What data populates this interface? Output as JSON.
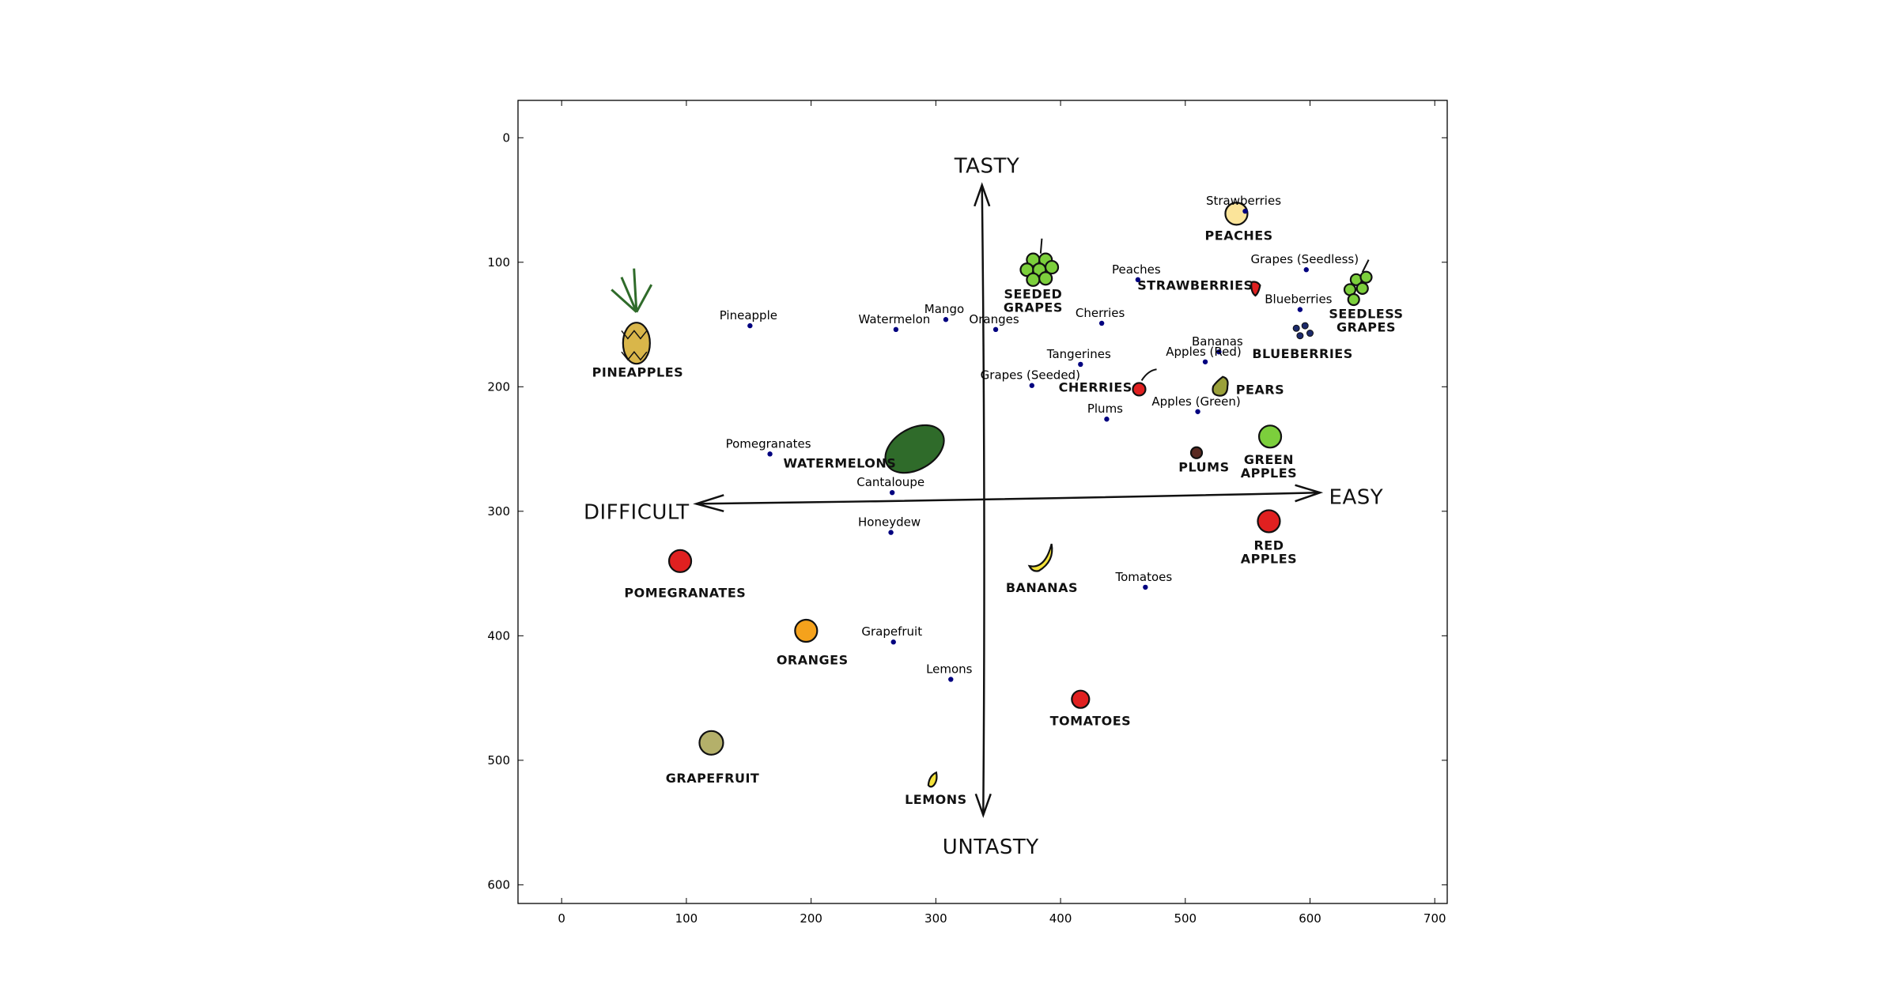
{
  "chart_data": {
    "type": "scatter",
    "title": "",
    "xlabel": "",
    "ylabel": "",
    "xlim": [
      -35,
      710
    ],
    "ylim": [
      615,
      -30
    ],
    "y_inverted": true,
    "grid": false,
    "xticks": [
      0,
      100,
      200,
      300,
      400,
      500,
      600,
      700
    ],
    "yticks": [
      0,
      100,
      200,
      300,
      400,
      500,
      600
    ],
    "points": [
      {
        "label": "Strawberries",
        "x": 548,
        "y": 59
      },
      {
        "label": "Peaches",
        "x": 462,
        "y": 114
      },
      {
        "label": "Grapes (Seedless)",
        "x": 597,
        "y": 106
      },
      {
        "label": "Blueberries",
        "x": 592,
        "y": 138
      },
      {
        "label": "Pineapple",
        "x": 151,
        "y": 151
      },
      {
        "label": "Mango",
        "x": 308,
        "y": 146
      },
      {
        "label": "Watermelon",
        "x": 268,
        "y": 154
      },
      {
        "label": "Oranges",
        "x": 348,
        "y": 154
      },
      {
        "label": "Cherries",
        "x": 433,
        "y": 149
      },
      {
        "label": "Bananas",
        "x": 527,
        "y": 172
      },
      {
        "label": "Apples (Red)",
        "x": 516,
        "y": 180
      },
      {
        "label": "Tangerines",
        "x": 416,
        "y": 182
      },
      {
        "label": "Grapes (Seeded)",
        "x": 377,
        "y": 199
      },
      {
        "label": "Apples (Green)",
        "x": 510,
        "y": 220
      },
      {
        "label": "Plums",
        "x": 437,
        "y": 226
      },
      {
        "label": "Pomegranates",
        "x": 167,
        "y": 254
      },
      {
        "label": "Cantaloupe",
        "x": 265,
        "y": 285
      },
      {
        "label": "Honeydew",
        "x": 264,
        "y": 317
      },
      {
        "label": "Tomatoes",
        "x": 468,
        "y": 361
      },
      {
        "label": "Grapefruit",
        "x": 266,
        "y": 405
      },
      {
        "label": "Lemons",
        "x": 312,
        "y": 435
      }
    ],
    "point_color": "#00007f",
    "background_image": {
      "axis_labels": {
        "top": "TASTY",
        "bottom": "UNTASTY",
        "left": "DIFFICULT",
        "right": "EASY"
      },
      "drawn_fruits": [
        {
          "name": "pineapple",
          "label": "PINEAPPLES"
        },
        {
          "name": "watermelon",
          "label": "WATERMELONS"
        },
        {
          "name": "seeded-grapes",
          "label": "SEEDED GRAPES"
        },
        {
          "name": "peaches",
          "label": "PEACHES"
        },
        {
          "name": "strawberries",
          "label": "STRAWBERRIES"
        },
        {
          "name": "seedless-grapes",
          "label": "SEEDLESS GRAPES"
        },
        {
          "name": "blueberries",
          "label": "BLUEBERRIES"
        },
        {
          "name": "cherries",
          "label": "CHERRIES"
        },
        {
          "name": "pears",
          "label": "PEARS"
        },
        {
          "name": "plums",
          "label": "PLUMS"
        },
        {
          "name": "green-apples",
          "label": "GREEN APPLES"
        },
        {
          "name": "red-apples",
          "label": "RED APPLES"
        },
        {
          "name": "pomegranates",
          "label": "POMEGRANATES"
        },
        {
          "name": "oranges",
          "label": "ORANGES"
        },
        {
          "name": "grapefruit",
          "label": "GRAPEFRUIT"
        },
        {
          "name": "lemons",
          "label": "LEMONS"
        },
        {
          "name": "bananas",
          "label": "BANANAS"
        },
        {
          "name": "tomatoes",
          "label": "TOMATOES"
        }
      ],
      "colors": {
        "green": "#7ccf3c",
        "dark_green": "#2f6b2a",
        "red": "#e02020",
        "orange": "#f5a21c",
        "yellow": "#f4e23a",
        "peach": "#fbe49a",
        "olive": "#9aa03a",
        "plum": "#5a2a22",
        "grapefruit": "#b4b06a",
        "blueberry": "#1c2a6a"
      }
    }
  }
}
